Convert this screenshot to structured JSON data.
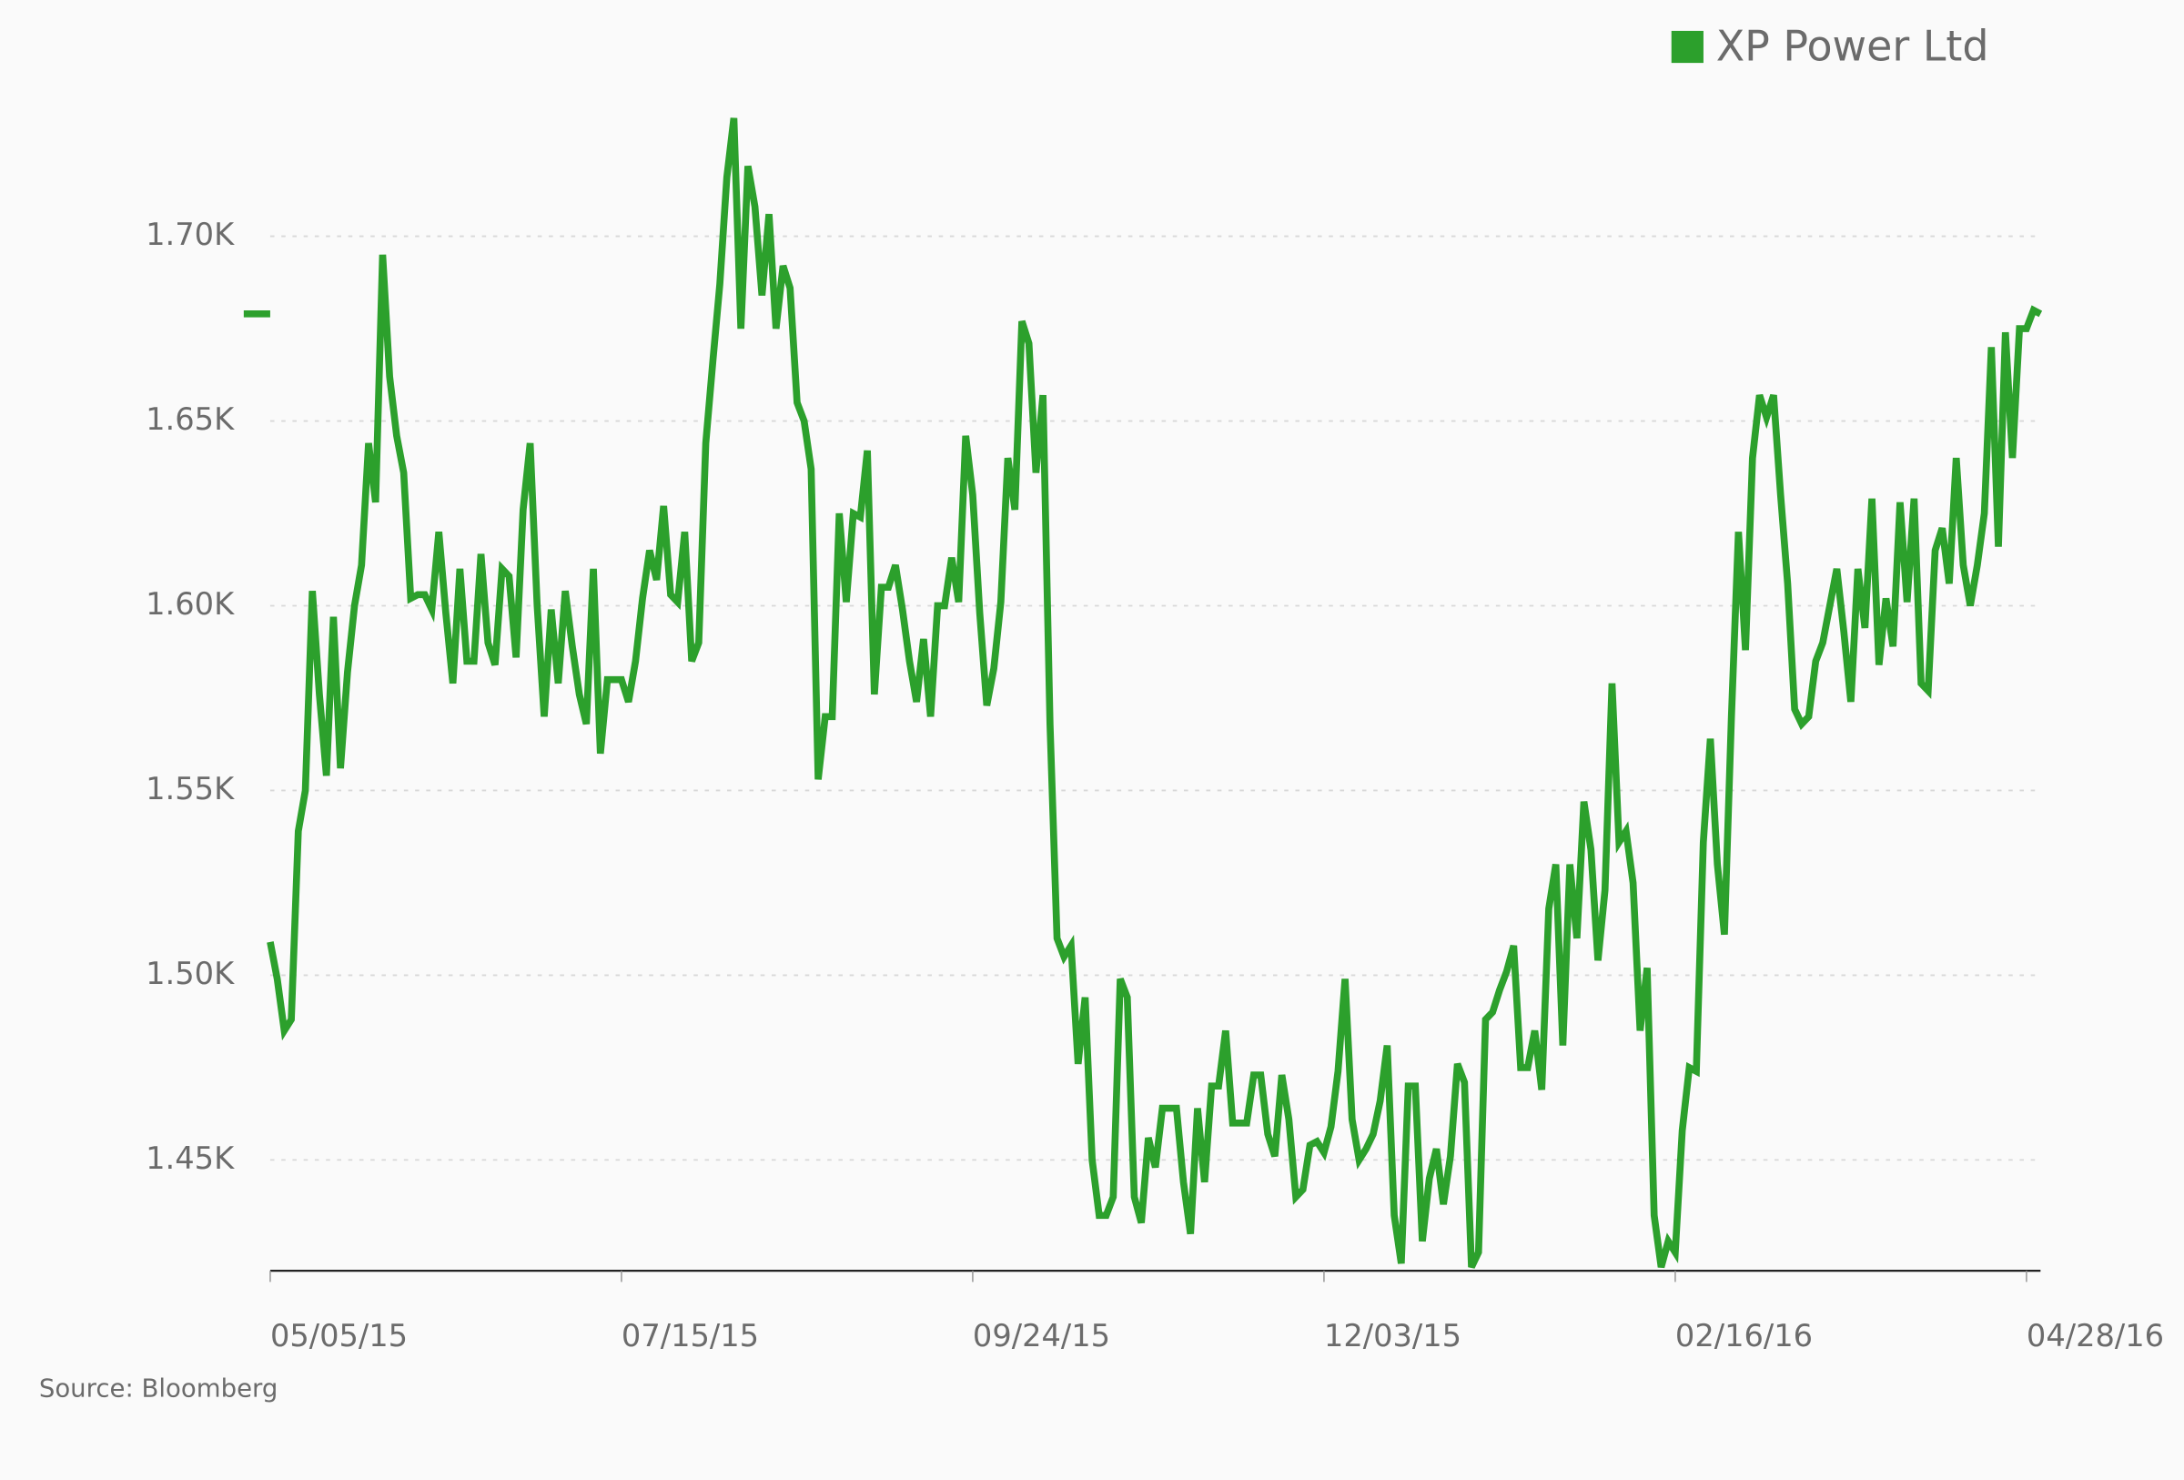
{
  "chart_data": {
    "type": "line",
    "source": "Source: Bloomberg",
    "categories": [
      "05/05/15",
      null,
      null,
      null,
      null,
      null,
      null,
      null,
      null,
      null,
      null,
      null,
      null,
      null,
      null,
      null,
      null,
      null,
      null,
      null,
      null,
      null,
      null,
      null,
      null,
      null,
      null,
      null,
      null,
      null,
      null,
      null,
      null,
      null,
      null,
      null,
      null,
      null,
      null,
      null,
      null,
      null,
      null,
      null,
      null,
      null,
      null,
      null,
      null,
      null,
      "07/15/15",
      null,
      null,
      null,
      null,
      null,
      null,
      null,
      null,
      null,
      null,
      null,
      null,
      null,
      null,
      null,
      null,
      null,
      null,
      null,
      null,
      null,
      null,
      null,
      null,
      null,
      null,
      null,
      null,
      null,
      null,
      null,
      null,
      null,
      null,
      null,
      null,
      null,
      null,
      null,
      null,
      null,
      null,
      null,
      null,
      null,
      null,
      null,
      null,
      null,
      "09/24/15",
      null,
      null,
      null,
      null,
      null,
      null,
      null,
      null,
      null,
      null,
      null,
      null,
      null,
      null,
      null,
      null,
      null,
      null,
      null,
      null,
      null,
      null,
      null,
      null,
      null,
      null,
      null,
      null,
      null,
      null,
      null,
      null,
      null,
      null,
      null,
      null,
      null,
      null,
      null,
      null,
      null,
      null,
      null,
      null,
      null,
      null,
      null,
      null,
      null,
      "12/03/15",
      null,
      null,
      null,
      null,
      null,
      null,
      null,
      null,
      null,
      null,
      null,
      null,
      null,
      null,
      null,
      null,
      null,
      null,
      null,
      null,
      null,
      null,
      null,
      null,
      null,
      null,
      null,
      null,
      null,
      null,
      null,
      null,
      null,
      null,
      null,
      null,
      null,
      null,
      null,
      null,
      null,
      null,
      null,
      null,
      null,
      null,
      null,
      null,
      null,
      "02/16/16",
      null,
      null,
      null,
      null,
      null,
      null,
      null,
      null,
      null,
      null,
      null,
      null,
      null,
      null,
      null,
      null,
      null,
      null,
      null,
      null,
      null,
      null,
      null,
      null,
      null,
      null,
      null,
      null,
      null,
      null,
      null,
      null,
      null,
      null,
      null,
      null,
      null,
      null,
      null,
      null,
      null,
      null,
      null,
      null,
      null,
      null,
      null,
      null,
      null,
      "04/28/16",
      null,
      null
    ],
    "series": [
      {
        "name": "XP Power Ltd",
        "color": "#2ca02c",
        "values": [
          1509,
          1499,
          1485,
          1488,
          1539,
          1550,
          1604,
          1576,
          1554,
          1597,
          1556,
          1582,
          1600,
          1611,
          1644,
          1628,
          1695,
          1662,
          1646,
          1636,
          1602,
          1603,
          1603,
          1599,
          1620,
          1598,
          1579,
          1610,
          1585,
          1585,
          1614,
          1590,
          1584,
          1610,
          1608,
          1586,
          1626,
          1644,
          1600,
          1570,
          1599,
          1579,
          1604,
          1589,
          1576,
          1568,
          1610,
          1560,
          1580,
          1580,
          1580,
          1574,
          1585,
          1602,
          1615,
          1607,
          1627,
          1603,
          1601,
          1620,
          1585,
          1590,
          1644,
          1666,
          1687,
          1716,
          1732,
          1675,
          1719,
          1708,
          1684,
          1706,
          1675,
          1692,
          1686,
          1655,
          1650,
          1637,
          1553,
          1570,
          1570,
          1625,
          1601,
          1625,
          1624,
          1642,
          1576,
          1605,
          1605,
          1611,
          1599,
          1585,
          1574,
          1591,
          1570,
          1600,
          1600,
          1613,
          1601,
          1646,
          1630,
          1598,
          1573,
          1583,
          1601,
          1640,
          1626,
          1677,
          1671,
          1636,
          1657,
          1568,
          1510,
          1505,
          1508,
          1476,
          1494,
          1450,
          1435,
          1435,
          1440,
          1499,
          1494,
          1440,
          1433,
          1456,
          1448,
          1464,
          1464,
          1464,
          1444,
          1430,
          1464,
          1444,
          1470,
          1470,
          1485,
          1460,
          1460,
          1460,
          1473,
          1473,
          1457,
          1451,
          1473,
          1461,
          1440,
          1442,
          1454,
          1455,
          1452,
          1459,
          1474,
          1499,
          1461,
          1450,
          1453,
          1457,
          1466,
          1481,
          1435,
          1422,
          1470,
          1470,
          1428,
          1445,
          1453,
          1438,
          1451,
          1476,
          1471,
          1421,
          1425,
          1488,
          1490,
          1496,
          1501,
          1508,
          1475,
          1475,
          1485,
          1469,
          1518,
          1530,
          1481,
          1530,
          1510,
          1547,
          1534,
          1504,
          1523,
          1579,
          1536,
          1539,
          1525,
          1485,
          1502,
          1435,
          1421,
          1428,
          1425,
          1458,
          1475,
          1474,
          1536,
          1564,
          1530,
          1511,
          1570,
          1620,
          1588,
          1640,
          1657,
          1651,
          1657,
          1630,
          1606,
          1572,
          1568,
          1570,
          1585,
          1590,
          1600,
          1610,
          1593,
          1574,
          1610,
          1594,
          1629,
          1584,
          1602,
          1589,
          1628,
          1601,
          1629,
          1579,
          1577,
          1615,
          1621,
          1606,
          1640,
          1611,
          1600,
          1611,
          1625,
          1670,
          1616,
          1674,
          1640,
          1675,
          1675,
          1680,
          1679
        ]
      }
    ],
    "ylim": [
      1420,
      1740
    ],
    "yticks": [
      {
        "value": 1450,
        "label": "1.45K"
      },
      {
        "value": 1500,
        "label": "1.50K"
      },
      {
        "value": 1550,
        "label": "1.55K"
      },
      {
        "value": 1600,
        "label": "1.60K"
      },
      {
        "value": 1650,
        "label": "1.65K"
      },
      {
        "value": 1700,
        "label": "1.70K"
      }
    ],
    "grid": true,
    "legend": "top-right"
  }
}
